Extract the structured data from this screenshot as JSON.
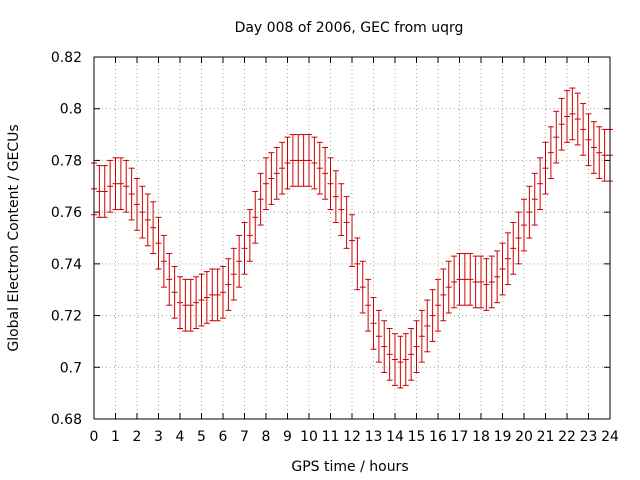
{
  "chart_data": {
    "type": "line",
    "title": "Day 008 of 2006, GEC from uqrg",
    "xlabel": "GPS time / hours",
    "ylabel": "Global Electron Content / GECUs",
    "xlim": [
      0,
      24
    ],
    "ylim": [
      0.68,
      0.82
    ],
    "xticks": [
      0,
      1,
      2,
      3,
      4,
      5,
      6,
      7,
      8,
      9,
      10,
      11,
      12,
      13,
      14,
      15,
      16,
      17,
      18,
      19,
      20,
      21,
      22,
      23,
      24
    ],
    "yticks": [
      0.68,
      0.7,
      0.72,
      0.74,
      0.76,
      0.78,
      0.8,
      0.82
    ],
    "ytick_labels": [
      "0.68",
      "0.7",
      "0.72",
      "0.74",
      "0.76",
      "0.78",
      "0.8",
      "0.82"
    ],
    "grid": true,
    "series": [
      {
        "name": "GEC",
        "color": "#cc0000",
        "error": 0.01,
        "x": [
          0,
          0.25,
          0.5,
          0.75,
          1,
          1.25,
          1.5,
          1.75,
          2,
          2.25,
          2.5,
          2.75,
          3,
          3.25,
          3.5,
          3.75,
          4,
          4.25,
          4.5,
          4.75,
          5,
          5.25,
          5.5,
          5.75,
          6,
          6.25,
          6.5,
          6.75,
          7,
          7.25,
          7.5,
          7.75,
          8,
          8.25,
          8.5,
          8.75,
          9,
          9.25,
          9.5,
          9.75,
          10,
          10.25,
          10.5,
          10.75,
          11,
          11.25,
          11.5,
          11.75,
          12,
          12.25,
          12.5,
          12.75,
          13,
          13.25,
          13.5,
          13.75,
          14,
          14.25,
          14.5,
          14.75,
          15,
          15.25,
          15.5,
          15.75,
          16,
          16.25,
          16.5,
          16.75,
          17,
          17.25,
          17.5,
          17.75,
          18,
          18.25,
          18.5,
          18.75,
          19,
          19.25,
          19.5,
          19.75,
          20,
          20.25,
          20.5,
          20.75,
          21,
          21.25,
          21.5,
          21.75,
          22,
          22.25,
          22.5,
          22.75,
          23,
          23.25,
          23.5,
          23.75,
          24
        ],
        "y": [
          0.769,
          0.768,
          0.768,
          0.77,
          0.771,
          0.771,
          0.77,
          0.767,
          0.763,
          0.76,
          0.757,
          0.754,
          0.748,
          0.741,
          0.734,
          0.729,
          0.725,
          0.724,
          0.724,
          0.725,
          0.726,
          0.727,
          0.728,
          0.728,
          0.729,
          0.732,
          0.736,
          0.741,
          0.746,
          0.751,
          0.758,
          0.765,
          0.771,
          0.773,
          0.775,
          0.777,
          0.779,
          0.78,
          0.78,
          0.78,
          0.78,
          0.779,
          0.777,
          0.775,
          0.771,
          0.766,
          0.761,
          0.756,
          0.749,
          0.74,
          0.731,
          0.724,
          0.717,
          0.712,
          0.708,
          0.705,
          0.703,
          0.702,
          0.703,
          0.705,
          0.708,
          0.712,
          0.716,
          0.72,
          0.724,
          0.728,
          0.731,
          0.733,
          0.734,
          0.734,
          0.734,
          0.733,
          0.733,
          0.732,
          0.733,
          0.735,
          0.738,
          0.742,
          0.746,
          0.75,
          0.755,
          0.76,
          0.765,
          0.771,
          0.777,
          0.783,
          0.789,
          0.794,
          0.797,
          0.798,
          0.796,
          0.792,
          0.788,
          0.785,
          0.783,
          0.782,
          0.782
        ]
      }
    ]
  }
}
